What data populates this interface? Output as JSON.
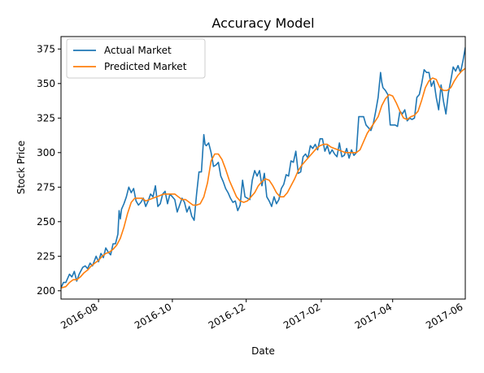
{
  "chart_data": {
    "type": "line",
    "title": "Accuracy Model",
    "xlabel": "Date",
    "ylabel": "Stock Price",
    "ylim": [
      194,
      384
    ],
    "xlim_days": [
      -7,
      327
    ],
    "x_ticks": [
      {
        "label": "2016-08",
        "day": 24
      },
      {
        "label": "2016-10",
        "day": 85
      },
      {
        "label": "2016-12",
        "day": 146
      },
      {
        "label": "2017-02",
        "day": 208
      },
      {
        "label": "2017-04",
        "day": 267
      },
      {
        "label": "2017-06",
        "day": 328
      }
    ],
    "y_ticks": [
      200,
      225,
      250,
      275,
      300,
      325,
      350,
      375
    ],
    "legend": {
      "placement": "top-left"
    },
    "grid": false,
    "x_reference_date": "2016-07-08",
    "series": [
      {
        "name": "Actual Market",
        "color": "#1f77b4",
        "points": [
          [
            -7,
            202
          ],
          [
            -5,
            206
          ],
          [
            -3,
            206
          ],
          [
            0,
            212
          ],
          [
            2,
            210
          ],
          [
            4,
            214
          ],
          [
            6,
            207
          ],
          [
            8,
            212
          ],
          [
            11,
            217
          ],
          [
            13,
            218
          ],
          [
            15,
            216
          ],
          [
            17,
            220
          ],
          [
            19,
            218
          ],
          [
            22,
            225
          ],
          [
            24,
            221
          ],
          [
            26,
            227
          ],
          [
            28,
            224
          ],
          [
            30,
            231
          ],
          [
            32,
            228
          ],
          [
            34,
            226
          ],
          [
            36,
            234
          ],
          [
            38,
            234
          ],
          [
            40,
            241
          ],
          [
            41,
            258
          ],
          [
            42,
            252
          ],
          [
            43,
            259
          ],
          [
            45,
            263
          ],
          [
            47,
            268
          ],
          [
            49,
            275
          ],
          [
            51,
            271
          ],
          [
            53,
            274
          ],
          [
            55,
            265
          ],
          [
            57,
            262
          ],
          [
            59,
            264
          ],
          [
            61,
            267
          ],
          [
            63,
            261
          ],
          [
            65,
            265
          ],
          [
            67,
            270
          ],
          [
            69,
            268
          ],
          [
            71,
            276
          ],
          [
            73,
            261
          ],
          [
            75,
            263
          ],
          [
            77,
            270
          ],
          [
            79,
            272
          ],
          [
            81,
            263
          ],
          [
            83,
            270
          ],
          [
            85,
            268
          ],
          [
            87,
            266
          ],
          [
            89,
            257
          ],
          [
            91,
            262
          ],
          [
            93,
            267
          ],
          [
            95,
            264
          ],
          [
            97,
            257
          ],
          [
            99,
            261
          ],
          [
            101,
            254
          ],
          [
            103,
            251
          ],
          [
            105,
            270
          ],
          [
            107,
            286
          ],
          [
            109,
            286
          ],
          [
            111,
            313
          ],
          [
            112,
            306
          ],
          [
            113,
            305
          ],
          [
            115,
            307
          ],
          [
            117,
            300
          ],
          [
            119,
            290
          ],
          [
            121,
            291
          ],
          [
            123,
            293
          ],
          [
            125,
            283
          ],
          [
            127,
            279
          ],
          [
            129,
            274
          ],
          [
            131,
            271
          ],
          [
            133,
            267
          ],
          [
            135,
            264
          ],
          [
            137,
            265
          ],
          [
            139,
            258
          ],
          [
            141,
            262
          ],
          [
            143,
            280
          ],
          [
            145,
            268
          ],
          [
            147,
            267
          ],
          [
            149,
            266
          ],
          [
            151,
            280
          ],
          [
            153,
            287
          ],
          [
            155,
            283
          ],
          [
            157,
            287
          ],
          [
            159,
            276
          ],
          [
            161,
            285
          ],
          [
            163,
            268
          ],
          [
            165,
            265
          ],
          [
            167,
            261
          ],
          [
            169,
            268
          ],
          [
            171,
            263
          ],
          [
            173,
            266
          ],
          [
            175,
            274
          ],
          [
            177,
            277
          ],
          [
            179,
            284
          ],
          [
            181,
            283
          ],
          [
            183,
            294
          ],
          [
            185,
            293
          ],
          [
            187,
            301
          ],
          [
            189,
            285
          ],
          [
            191,
            286
          ],
          [
            193,
            297
          ],
          [
            195,
            299
          ],
          [
            197,
            296
          ],
          [
            199,
            305
          ],
          [
            201,
            303
          ],
          [
            203,
            306
          ],
          [
            205,
            302
          ],
          [
            207,
            310
          ],
          [
            209,
            310
          ],
          [
            211,
            301
          ],
          [
            213,
            305
          ],
          [
            215,
            299
          ],
          [
            217,
            302
          ],
          [
            219,
            299
          ],
          [
            221,
            297
          ],
          [
            223,
            307
          ],
          [
            225,
            297
          ],
          [
            227,
            298
          ],
          [
            229,
            303
          ],
          [
            231,
            296
          ],
          [
            233,
            302
          ],
          [
            235,
            298
          ],
          [
            237,
            300
          ],
          [
            239,
            326
          ],
          [
            241,
            326
          ],
          [
            243,
            326
          ],
          [
            245,
            320
          ],
          [
            247,
            318
          ],
          [
            249,
            316
          ],
          [
            251,
            321
          ],
          [
            253,
            330
          ],
          [
            255,
            340
          ],
          [
            257,
            358
          ],
          [
            258,
            351
          ],
          [
            259,
            347
          ],
          [
            261,
            345
          ],
          [
            263,
            342
          ],
          [
            265,
            320
          ],
          [
            267,
            320
          ],
          [
            269,
            320
          ],
          [
            271,
            319
          ],
          [
            273,
            330
          ],
          [
            275,
            328
          ],
          [
            277,
            331
          ],
          [
            279,
            323
          ],
          [
            281,
            325
          ],
          [
            283,
            324
          ],
          [
            285,
            325
          ],
          [
            287,
            340
          ],
          [
            289,
            342
          ],
          [
            291,
            350
          ],
          [
            293,
            360
          ],
          [
            295,
            358
          ],
          [
            297,
            358
          ],
          [
            299,
            348
          ],
          [
            301,
            352
          ],
          [
            303,
            340
          ],
          [
            305,
            331
          ],
          [
            307,
            349
          ],
          [
            309,
            337
          ],
          [
            311,
            328
          ],
          [
            313,
            343
          ],
          [
            315,
            352
          ],
          [
            317,
            362
          ],
          [
            319,
            359
          ],
          [
            321,
            363
          ],
          [
            323,
            358
          ],
          [
            325,
            366
          ],
          [
            327,
            376
          ],
          [
            329,
            369
          ],
          [
            331,
            366
          ],
          [
            333,
            368
          ],
          [
            335,
            365
          ]
        ]
      },
      {
        "name": "Predicted Market",
        "color": "#ff7f0e",
        "points": [
          [
            -7,
            202
          ],
          [
            -3,
            203
          ],
          [
            0,
            206
          ],
          [
            3,
            208
          ],
          [
            6,
            208
          ],
          [
            9,
            210
          ],
          [
            12,
            213
          ],
          [
            15,
            215
          ],
          [
            18,
            218
          ],
          [
            21,
            220
          ],
          [
            24,
            222
          ],
          [
            27,
            225
          ],
          [
            30,
            227
          ],
          [
            33,
            228
          ],
          [
            36,
            230
          ],
          [
            39,
            233
          ],
          [
            42,
            238
          ],
          [
            45,
            246
          ],
          [
            48,
            256
          ],
          [
            51,
            264
          ],
          [
            54,
            267
          ],
          [
            57,
            267
          ],
          [
            60,
            267
          ],
          [
            63,
            265
          ],
          [
            66,
            266
          ],
          [
            69,
            267
          ],
          [
            72,
            268
          ],
          [
            75,
            269
          ],
          [
            78,
            270
          ],
          [
            81,
            270
          ],
          [
            84,
            270
          ],
          [
            87,
            270
          ],
          [
            90,
            268
          ],
          [
            93,
            266
          ],
          [
            96,
            266
          ],
          [
            99,
            264
          ],
          [
            102,
            262
          ],
          [
            105,
            262
          ],
          [
            108,
            263
          ],
          [
            111,
            268
          ],
          [
            114,
            278
          ],
          [
            117,
            294
          ],
          [
            120,
            299
          ],
          [
            123,
            299
          ],
          [
            126,
            295
          ],
          [
            129,
            288
          ],
          [
            132,
            280
          ],
          [
            135,
            274
          ],
          [
            138,
            268
          ],
          [
            141,
            265
          ],
          [
            144,
            264
          ],
          [
            147,
            265
          ],
          [
            150,
            268
          ],
          [
            153,
            271
          ],
          [
            156,
            276
          ],
          [
            159,
            279
          ],
          [
            162,
            281
          ],
          [
            165,
            280
          ],
          [
            168,
            276
          ],
          [
            171,
            271
          ],
          [
            174,
            268
          ],
          [
            177,
            268
          ],
          [
            180,
            271
          ],
          [
            183,
            276
          ],
          [
            186,
            281
          ],
          [
            189,
            287
          ],
          [
            192,
            291
          ],
          [
            195,
            294
          ],
          [
            198,
            297
          ],
          [
            201,
            300
          ],
          [
            204,
            303
          ],
          [
            207,
            305
          ],
          [
            210,
            306
          ],
          [
            213,
            306
          ],
          [
            216,
            304
          ],
          [
            219,
            303
          ],
          [
            222,
            302
          ],
          [
            225,
            301
          ],
          [
            228,
            300
          ],
          [
            231,
            300
          ],
          [
            234,
            300
          ],
          [
            237,
            300
          ],
          [
            240,
            302
          ],
          [
            243,
            308
          ],
          [
            246,
            314
          ],
          [
            249,
            318
          ],
          [
            252,
            322
          ],
          [
            255,
            326
          ],
          [
            258,
            334
          ],
          [
            261,
            339
          ],
          [
            264,
            342
          ],
          [
            267,
            341
          ],
          [
            270,
            336
          ],
          [
            273,
            330
          ],
          [
            276,
            325
          ],
          [
            279,
            324
          ],
          [
            282,
            326
          ],
          [
            285,
            327
          ],
          [
            288,
            330
          ],
          [
            291,
            338
          ],
          [
            294,
            347
          ],
          [
            297,
            352
          ],
          [
            300,
            354
          ],
          [
            303,
            353
          ],
          [
            306,
            347
          ],
          [
            309,
            345
          ],
          [
            312,
            345
          ],
          [
            315,
            347
          ],
          [
            318,
            352
          ],
          [
            321,
            356
          ],
          [
            324,
            359
          ],
          [
            327,
            361
          ],
          [
            330,
            363
          ],
          [
            333,
            365
          ],
          [
            335,
            366
          ]
        ]
      }
    ]
  }
}
